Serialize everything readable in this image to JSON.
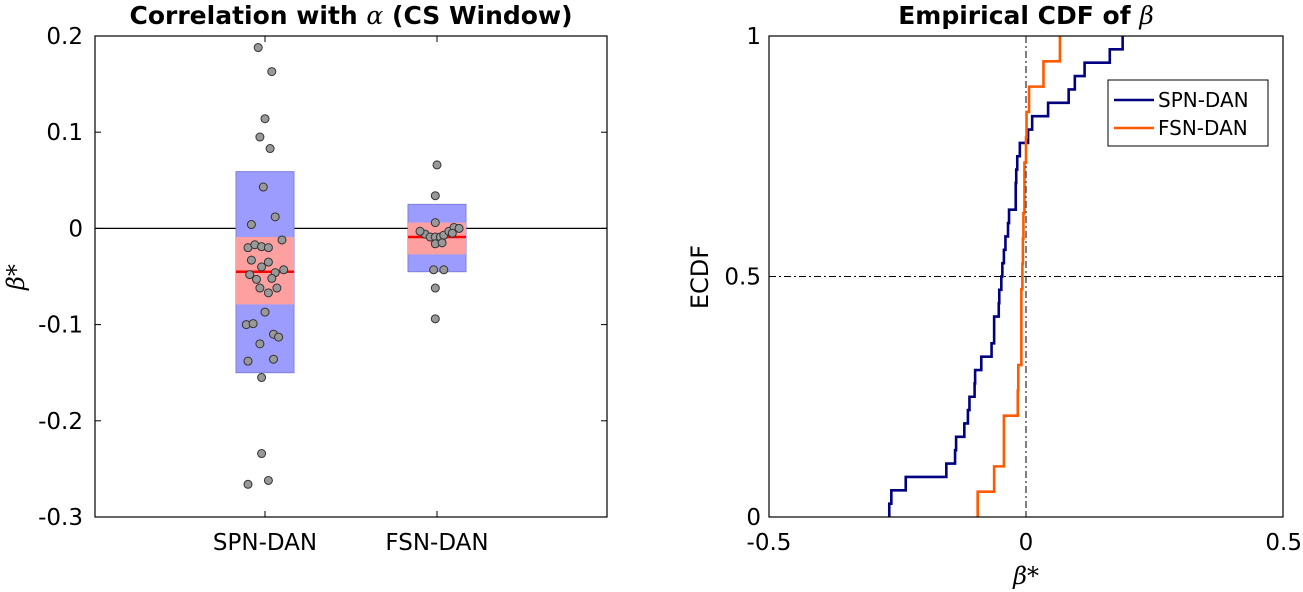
{
  "chart_data": [
    {
      "type": "box-scatter",
      "title": "Correlation with",
      "title_symbol": "α",
      "title_suffix": "(CS Window)",
      "ylabel": "β*",
      "ylim": [
        -0.3,
        0.2
      ],
      "yticks": [
        0.2,
        0.1,
        0,
        -0.1,
        -0.2,
        -0.3
      ],
      "ytick_labels": [
        "0.2",
        "0.1",
        "0",
        "-0.1",
        "-0.2",
        "-0.3"
      ],
      "categories": [
        "SPN-DAN",
        "FSN-DAN"
      ],
      "zero_line": 0,
      "colors": {
        "outer_box": "#9c9cff",
        "inner_box": "#ffa0a0",
        "median": "#ff0000",
        "point": "#999999"
      },
      "groups": [
        {
          "name": "SPN-DAN",
          "outer": [
            -0.15,
            0.059
          ],
          "inner": [
            -0.079,
            -0.009
          ],
          "median": -0.045,
          "points": [
            [
              -0.04,
              0.188
            ],
            [
              0.04,
              0.163
            ],
            [
              0.0,
              0.114
            ],
            [
              -0.03,
              0.095
            ],
            [
              0.03,
              0.083
            ],
            [
              -0.01,
              0.043
            ],
            [
              -0.08,
              0.004
            ],
            [
              0.06,
              0.012
            ],
            [
              -0.1,
              -0.02
            ],
            [
              -0.06,
              -0.017
            ],
            [
              -0.02,
              -0.019
            ],
            [
              0.02,
              -0.02
            ],
            [
              0.1,
              -0.012
            ],
            [
              -0.08,
              -0.033
            ],
            [
              0.02,
              -0.035
            ],
            [
              -0.02,
              -0.04
            ],
            [
              0.11,
              -0.043
            ],
            [
              -0.09,
              -0.048
            ],
            [
              -0.05,
              -0.053
            ],
            [
              0.06,
              -0.046
            ],
            [
              0.04,
              -0.052
            ],
            [
              -0.03,
              -0.062
            ],
            [
              0.07,
              -0.062
            ],
            [
              0.02,
              -0.067
            ],
            [
              -0.11,
              -0.1
            ],
            [
              0.0,
              -0.087
            ],
            [
              -0.07,
              -0.099
            ],
            [
              0.05,
              -0.11
            ],
            [
              0.08,
              -0.113
            ],
            [
              -0.03,
              -0.12
            ],
            [
              -0.1,
              -0.138
            ],
            [
              0.05,
              -0.136
            ],
            [
              -0.02,
              -0.155
            ],
            [
              -0.02,
              -0.234
            ],
            [
              -0.1,
              -0.266
            ],
            [
              0.02,
              -0.262
            ]
          ]
        },
        {
          "name": "FSN-DAN",
          "outer": [
            -0.045,
            0.025
          ],
          "inner": [
            -0.027,
            0.006
          ],
          "median": -0.009,
          "points": [
            [
              0.0,
              0.066
            ],
            [
              -0.01,
              0.034
            ],
            [
              -0.01,
              0.006
            ],
            [
              -0.07,
              -0.006
            ],
            [
              -0.04,
              -0.009
            ],
            [
              -0.01,
              -0.009
            ],
            [
              0.02,
              -0.009
            ],
            [
              0.04,
              -0.007
            ],
            [
              0.07,
              -0.003
            ],
            [
              0.1,
              0.001
            ],
            [
              0.13,
              0.0
            ],
            [
              -0.1,
              -0.003
            ],
            [
              0.09,
              -0.005
            ],
            [
              -0.01,
              -0.016
            ],
            [
              0.03,
              -0.015
            ],
            [
              -0.02,
              -0.043
            ],
            [
              0.04,
              -0.043
            ],
            [
              -0.01,
              -0.062
            ],
            [
              -0.01,
              -0.094
            ]
          ]
        }
      ]
    },
    {
      "type": "line",
      "title": "Empirical CDF of",
      "title_symbol": "β",
      "xlabel": "β*",
      "ylabel": "ECDF",
      "xlim": [
        -0.5,
        0.5
      ],
      "ylim": [
        0,
        1
      ],
      "xticks": [
        -0.5,
        0,
        0.5
      ],
      "xtick_labels": [
        "-0.5",
        "0",
        "0.5"
      ],
      "yticks": [
        0,
        0.5,
        1
      ],
      "ytick_labels": [
        "0",
        "0.5",
        "1"
      ],
      "reference_lines": {
        "x": 0,
        "y": 0.5
      },
      "legend_position": "top-right",
      "series": [
        {
          "name": "SPN-DAN",
          "color": "#000080",
          "samples": [
            -0.266,
            -0.262,
            -0.234,
            -0.155,
            -0.138,
            -0.136,
            -0.12,
            -0.113,
            -0.11,
            -0.1,
            -0.099,
            -0.087,
            -0.067,
            -0.062,
            -0.062,
            -0.053,
            -0.052,
            -0.048,
            -0.046,
            -0.043,
            -0.04,
            -0.035,
            -0.033,
            -0.02,
            -0.02,
            -0.019,
            -0.017,
            -0.012,
            0.004,
            0.012,
            0.043,
            0.083,
            0.095,
            0.114,
            0.163,
            0.188
          ]
        },
        {
          "name": "FSN-DAN",
          "color": "#ff5a00",
          "samples": [
            -0.094,
            -0.062,
            -0.043,
            -0.043,
            -0.016,
            -0.015,
            -0.009,
            -0.009,
            -0.009,
            -0.007,
            -0.006,
            -0.005,
            -0.003,
            -0.003,
            0.0,
            0.001,
            0.006,
            0.034,
            0.066
          ]
        }
      ]
    }
  ]
}
